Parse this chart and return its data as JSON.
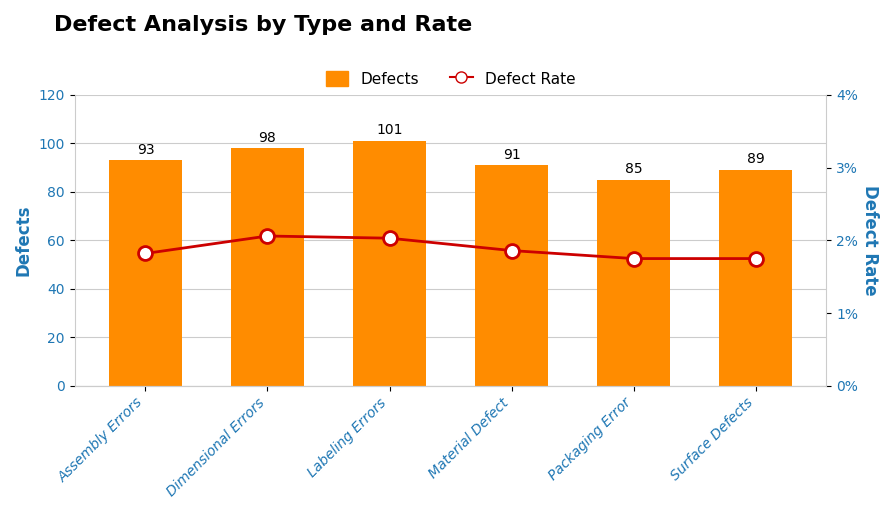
{
  "title": "Defect Analysis by Type and Rate",
  "categories": [
    "Assembly Errors",
    "Dimensional Errors",
    "Labeling Errors",
    "Material Defect",
    "Packaging Error",
    "Surface Defects"
  ],
  "defects": [
    93,
    98,
    101,
    91,
    85,
    89
  ],
  "defect_rates": [
    1.82,
    2.06,
    2.03,
    1.86,
    1.75,
    1.75
  ],
  "bar_color": "#FF8C00",
  "line_color": "#CC0000",
  "marker_color": "#CC0000",
  "marker_face": "#FFFFFF",
  "left_ylabel": "Defects",
  "right_ylabel": "Defect Rate",
  "ylim_left": [
    0,
    120
  ],
  "ylim_right": [
    0,
    4
  ],
  "yticks_left": [
    0,
    20,
    40,
    60,
    80,
    100,
    120
  ],
  "yticks_right": [
    0,
    1,
    2,
    3,
    4
  ],
  "background_color": "#FFFFFF",
  "plot_bg_color": "#FFFFFF",
  "grid_color": "#CCCCCC",
  "title_fontsize": 16,
  "axis_label_fontsize": 12,
  "tick_fontsize": 10,
  "annotation_fontsize": 10,
  "legend_fontsize": 11,
  "bar_value_fontsize": 10,
  "rate_label_fontsize": 10
}
